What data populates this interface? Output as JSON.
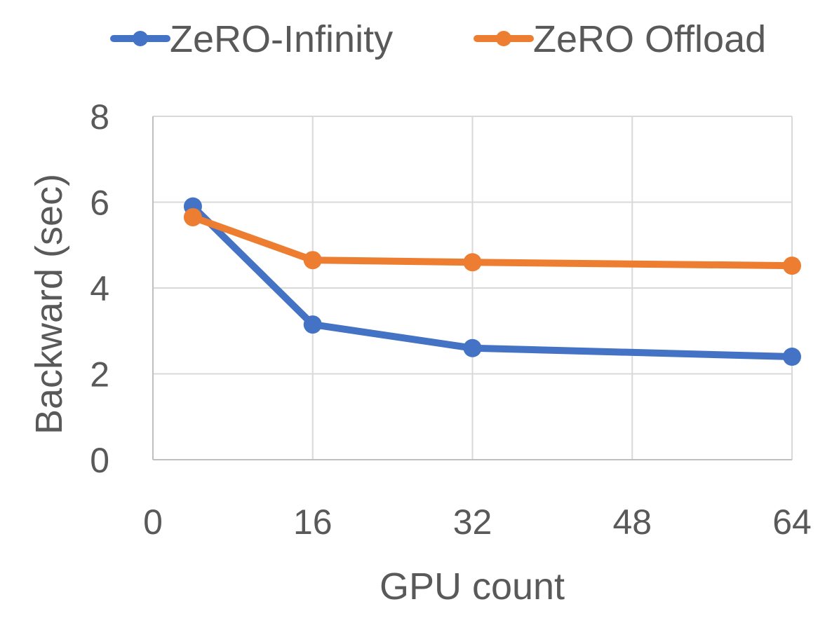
{
  "chart_data": {
    "type": "line",
    "title": "",
    "xlabel": "GPU count",
    "ylabel": "Backward (sec)",
    "xlim": [
      0,
      64
    ],
    "ylim": [
      0,
      8
    ],
    "xticks": [
      "0",
      "16",
      "32",
      "48",
      "64"
    ],
    "yticks": [
      "0",
      "2",
      "4",
      "6",
      "8"
    ],
    "grid": true,
    "legend_position": "top",
    "series": [
      {
        "name": "ZeRO-Infinity",
        "color": "#4472c4",
        "x": [
          4,
          16,
          32,
          64
        ],
        "y": [
          5.9,
          3.15,
          2.6,
          2.4
        ]
      },
      {
        "name": "ZeRO Offload",
        "color": "#ed7d31",
        "x": [
          4,
          16,
          32,
          64
        ],
        "y": [
          5.65,
          4.65,
          4.6,
          4.52
        ]
      }
    ]
  }
}
